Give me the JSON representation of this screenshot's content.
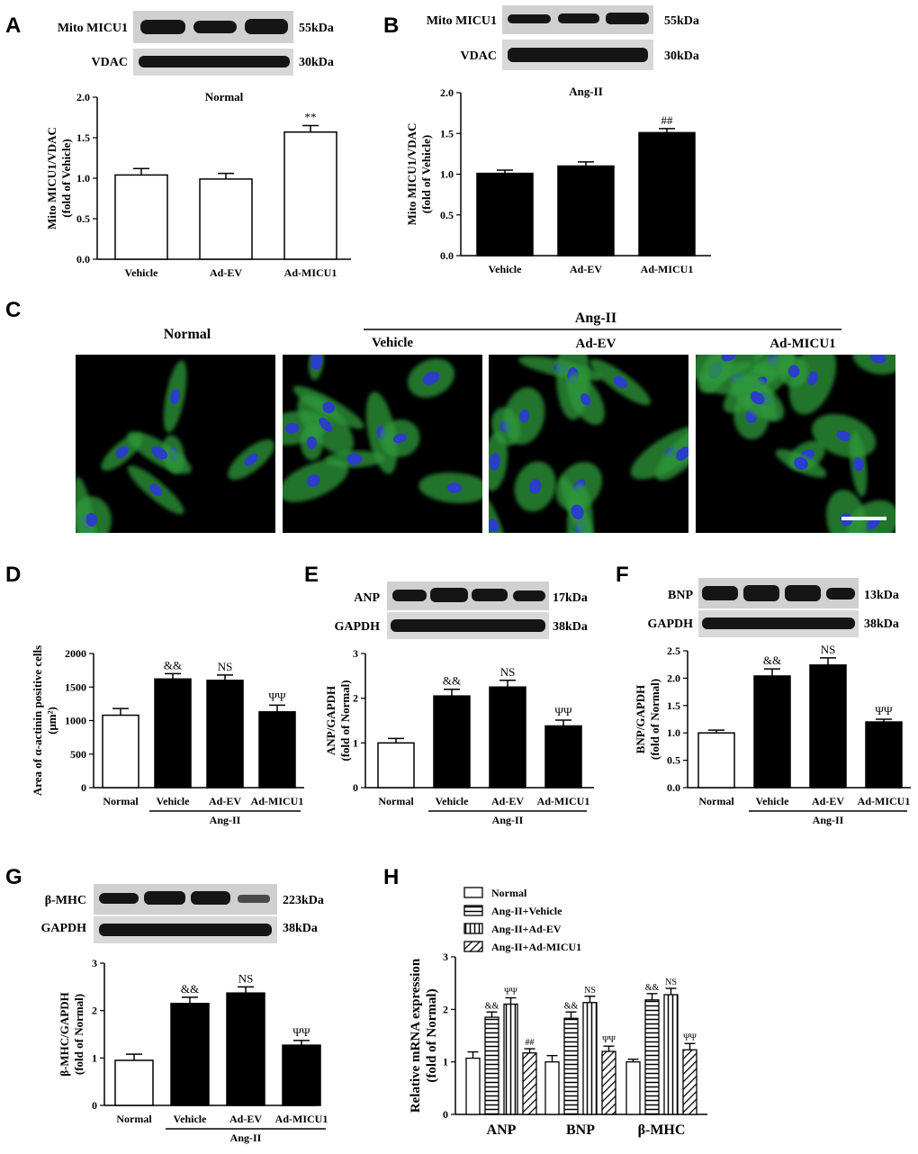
{
  "colors": {
    "bar_black": "#000000",
    "bar_white": "#ffffff",
    "cell_green": "#2f9a3a",
    "nucleus_blue": "#2a3ec8",
    "blot_bg": "#cfcfcf",
    "blot_band": "#151515"
  },
  "panelA": {
    "letter": "A",
    "title": "Normal",
    "blots": [
      {
        "protein": "Mito MICU1",
        "size": "55kDa"
      },
      {
        "protein": "VDAC",
        "size": "30kDa"
      }
    ],
    "ylabel": [
      "Mito MICU1/VDAC",
      "(fold of Vehicle)"
    ]
  },
  "panelB": {
    "letter": "B",
    "title": "Ang-II",
    "blots": [
      {
        "protein": "Mito MICU1",
        "size": "55kDa"
      },
      {
        "protein": "VDAC",
        "size": "30kDa"
      }
    ],
    "ylabel": [
      "Mito MICU1/VDAC",
      "(fold of Vehicle)"
    ]
  },
  "panelC": {
    "letter": "C",
    "group_left": "Normal",
    "group_right": "Ang-II",
    "subgroups": [
      "Vehicle",
      "Ad-EV",
      "Ad-MICU1"
    ],
    "image_icon": "fluorescence-micrograph"
  },
  "panelD": {
    "letter": "D",
    "ylabel": [
      "Area of α-actinin positive cells",
      "(μm²)"
    ],
    "group": "Ang-II"
  },
  "panelE": {
    "letter": "E",
    "blots": [
      {
        "protein": "ANP",
        "size": "17kDa"
      },
      {
        "protein": "GAPDH",
        "size": "38kDa"
      }
    ],
    "ylabel": [
      "ANP/GAPDH",
      "(fold of Normal)"
    ],
    "group": "Ang-II"
  },
  "panelF": {
    "letter": "F",
    "blots": [
      {
        "protein": "BNP",
        "size": "13kDa"
      },
      {
        "protein": "GAPDH",
        "size": "38kDa"
      }
    ],
    "ylabel": [
      "BNP/GAPDH",
      "(fold of Normal)"
    ],
    "group": "Ang-II"
  },
  "panelG": {
    "letter": "G",
    "blots": [
      {
        "protein": "β-MHC",
        "size": "223kDa"
      },
      {
        "protein": "GAPDH",
        "size": "38kDa"
      }
    ],
    "ylabel": [
      "β-MHC/GAPDH",
      "(fold of Normal)"
    ],
    "group": "Ang-II"
  },
  "panelH": {
    "letter": "H",
    "ylabel": [
      "Relative mRNA expression",
      "(fold of Normal)"
    ]
  },
  "chart_data": [
    {
      "id": "A",
      "type": "bar",
      "title": "Normal",
      "categories": [
        "Vehicle",
        "Ad-EV",
        "Ad-MICU1"
      ],
      "values": [
        1.04,
        0.99,
        1.57
      ],
      "errors": [
        0.08,
        0.07,
        0.08
      ],
      "annotations": [
        "",
        "",
        "**"
      ],
      "ylim": [
        0,
        2.0
      ],
      "yticks": [
        "0.0",
        "0.5",
        "1.0",
        "1.5",
        "2.0"
      ],
      "bar_fill": [
        "white",
        "white",
        "white"
      ]
    },
    {
      "id": "B",
      "type": "bar",
      "title": "Ang-II",
      "categories": [
        "Vehicle",
        "Ad-EV",
        "Ad-MICU1"
      ],
      "values": [
        1.01,
        1.1,
        1.51
      ],
      "errors": [
        0.04,
        0.05,
        0.05
      ],
      "annotations": [
        "",
        "",
        "##"
      ],
      "ylim": [
        0,
        2.0
      ],
      "yticks": [
        "0.0",
        "0.5",
        "1.0",
        "1.5",
        "2.0"
      ],
      "bar_fill": [
        "black",
        "black",
        "black"
      ]
    },
    {
      "id": "D",
      "type": "bar",
      "categories": [
        "Normal",
        "Vehicle",
        "Ad-EV",
        "Ad-MICU1"
      ],
      "values": [
        1080,
        1620,
        1600,
        1130
      ],
      "errors": [
        100,
        80,
        80,
        100
      ],
      "annotations": [
        "",
        "&&",
        "NS",
        "ΨΨ"
      ],
      "ylim": [
        0,
        2000
      ],
      "yticks": [
        "0",
        "500",
        "1000",
        "1500",
        "2000"
      ],
      "bar_fill": [
        "white",
        "black",
        "black",
        "black"
      ]
    },
    {
      "id": "E",
      "type": "bar",
      "categories": [
        "Normal",
        "Vehicle",
        "Ad-EV",
        "Ad-MICU1"
      ],
      "values": [
        1.0,
        2.05,
        2.25,
        1.38
      ],
      "errors": [
        0.1,
        0.15,
        0.15,
        0.13
      ],
      "annotations": [
        "",
        "&&",
        "NS",
        "ΨΨ"
      ],
      "ylim": [
        0,
        3
      ],
      "yticks": [
        "0",
        "1",
        "2",
        "3"
      ],
      "bar_fill": [
        "white",
        "black",
        "black",
        "black"
      ]
    },
    {
      "id": "F",
      "type": "bar",
      "categories": [
        "Normal",
        "Vehicle",
        "Ad-EV",
        "Ad-MICU1"
      ],
      "values": [
        1.0,
        2.04,
        2.24,
        1.2
      ],
      "errors": [
        0.05,
        0.13,
        0.13,
        0.05
      ],
      "annotations": [
        "",
        "&&",
        "NS",
        "ΨΨ"
      ],
      "ylim": [
        0,
        2.5
      ],
      "yticks": [
        "0.0",
        "0.5",
        "1.0",
        "1.5",
        "2.0",
        "2.5"
      ],
      "bar_fill": [
        "white",
        "black",
        "black",
        "black"
      ]
    },
    {
      "id": "G",
      "type": "bar",
      "categories": [
        "Normal",
        "Vehicle",
        "Ad-EV",
        "Ad-MICU1"
      ],
      "values": [
        0.95,
        2.15,
        2.37,
        1.27
      ],
      "errors": [
        0.13,
        0.13,
        0.13,
        0.1
      ],
      "annotations": [
        "",
        "&&",
        "NS",
        "ΨΨ"
      ],
      "ylim": [
        0,
        3
      ],
      "yticks": [
        "0",
        "1",
        "2",
        "3"
      ],
      "bar_fill": [
        "white",
        "black",
        "black",
        "black"
      ]
    },
    {
      "id": "H",
      "type": "bar",
      "categories": [
        "ANP",
        "BNP",
        "β-MHC"
      ],
      "series": [
        {
          "name": "Normal",
          "values": [
            1.07,
            1.0,
            1.0
          ],
          "errors": [
            0.12,
            0.12,
            0.05
          ],
          "annotations": [
            "",
            "",
            ""
          ],
          "pattern": "white"
        },
        {
          "name": "Ang-II+Vehicle",
          "values": [
            1.85,
            1.83,
            2.18
          ],
          "errors": [
            0.1,
            0.12,
            0.12
          ],
          "annotations": [
            "&&",
            "&&",
            "&&"
          ],
          "pattern": "hlines"
        },
        {
          "name": "Ang-II+Ad-EV",
          "values": [
            2.1,
            2.13,
            2.28
          ],
          "errors": [
            0.12,
            0.12,
            0.12
          ],
          "annotations": [
            "ΨΨ",
            "NS",
            "NS"
          ],
          "pattern": "vlines"
        },
        {
          "name": "Ang-II+Ad-MICU1",
          "values": [
            1.17,
            1.2,
            1.23
          ],
          "errors": [
            0.08,
            0.1,
            0.12
          ],
          "annotations": [
            "##",
            "ΨΨ",
            "ΨΨ"
          ],
          "pattern": "diag"
        }
      ],
      "ylim": [
        0,
        3
      ],
      "yticks": [
        "0",
        "1",
        "2",
        "3"
      ],
      "legend": "top"
    }
  ]
}
